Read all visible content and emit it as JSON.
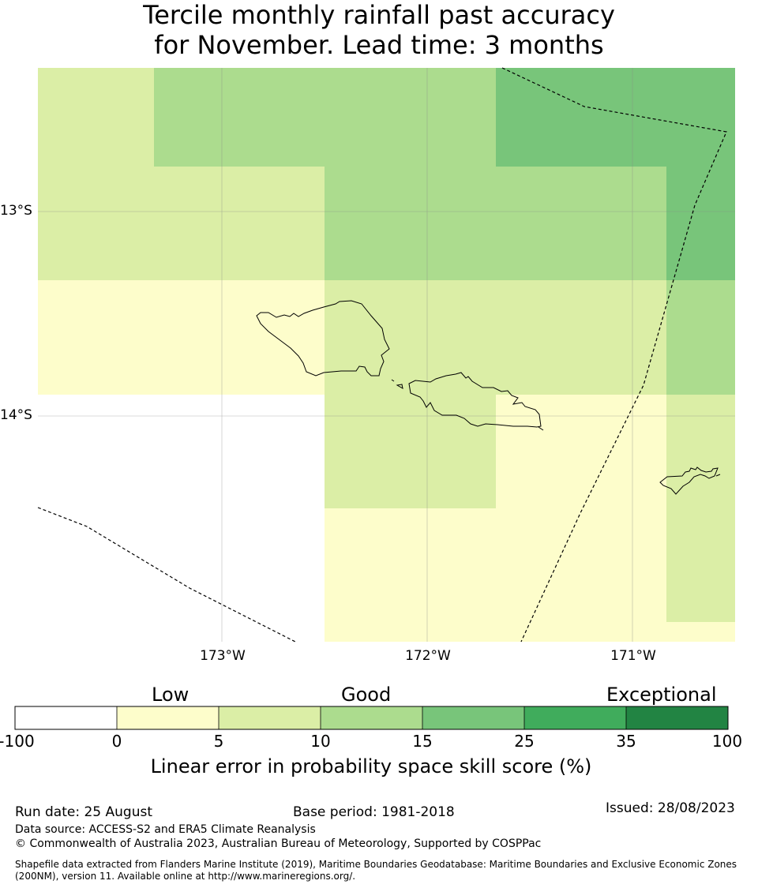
{
  "title": {
    "line1": "Tercile monthly rainfall past accuracy",
    "line2": "for November. Lead time: 3 months"
  },
  "map": {
    "lat_labels": [
      "13°S",
      "14°S"
    ],
    "lon_labels": [
      "173°W",
      "172°W",
      "171°W"
    ],
    "colors": {
      "c0": "#fdfdcb",
      "c5": "#dbeea6",
      "c10": "#acdc8e",
      "c15": "#78c57a",
      "c25": "#40ac5c",
      "c35": "#228443"
    }
  },
  "colorbar": {
    "categories": [
      "Low",
      "Good",
      "Exceptional"
    ],
    "ticks": [
      "-100",
      "0",
      "5",
      "10",
      "15",
      "25",
      "35",
      "100"
    ],
    "colors": [
      "#ffffff",
      "#fdfdcb",
      "#dbeea6",
      "#acdc8e",
      "#78c57a",
      "#40ac5c",
      "#228443"
    ],
    "label": "Linear error in probability space skill score (%)"
  },
  "footer": {
    "run_date": "Run date: 25 August",
    "base_period": "Base period: 1981-2018",
    "issued": "Issued: 28/08/2023",
    "data_source": "Data source: ACCESS-S2 and ERA5 Climate Reanalysis",
    "copyright": "© Commonwealth of Australia 2023, Australian Bureau of Meteorology, Supported by COSPPac",
    "shapefile_line1": "Shapefile data extracted from Flanders Marine Institute (2019), Maritime Boundaries Geodatabase: Maritime Boundaries and Exclusive Economic Zones",
    "shapefile_line2": "(200NM), version 11. Available online at http://www.marineregions.org/."
  }
}
